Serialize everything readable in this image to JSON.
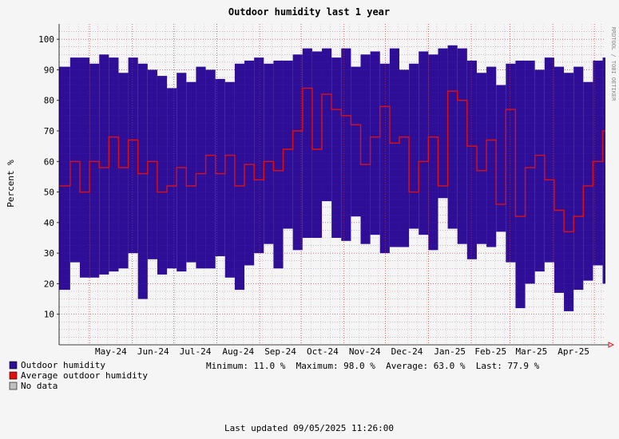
{
  "chart_data": {
    "type": "area",
    "title": "Outdoor humidity last 1 year",
    "ylabel": "Percent  %",
    "watermark": "RRDTOOL / TOBI OETIKER",
    "ylim": [
      0,
      105
    ],
    "yticks": [
      10,
      20,
      30,
      40,
      50,
      60,
      70,
      80,
      90,
      100
    ],
    "x_labels": [
      "May-24",
      "Jun-24",
      "Jul-24",
      "Aug-24",
      "Sep-24",
      "Oct-24",
      "Nov-24",
      "Dec-24",
      "Jan-25",
      "Feb-25",
      "Mar-25",
      "Apr-25"
    ],
    "colors": {
      "band": "#2e0e96",
      "average": "#e01010",
      "grid_minor": "#d4b4b4",
      "grid_major": "#c03030",
      "no_data": "#c0c0c0",
      "axis_arrow": "#e01010"
    },
    "series": [
      {
        "name": "Outdoor humidity",
        "kind": "band",
        "x": [
          "2024-04-09",
          "2024-04-17",
          "2024-04-24",
          "2024-05-01",
          "2024-05-08",
          "2024-05-15",
          "2024-05-22",
          "2024-05-29",
          "2024-06-05",
          "2024-06-12",
          "2024-06-19",
          "2024-06-26",
          "2024-07-03",
          "2024-07-10",
          "2024-07-17",
          "2024-07-24",
          "2024-07-31",
          "2024-08-07",
          "2024-08-14",
          "2024-08-21",
          "2024-08-28",
          "2024-09-04",
          "2024-09-11",
          "2024-09-18",
          "2024-09-25",
          "2024-10-02",
          "2024-10-09",
          "2024-10-16",
          "2024-10-23",
          "2024-10-30",
          "2024-11-06",
          "2024-11-13",
          "2024-11-20",
          "2024-11-27",
          "2024-12-04",
          "2024-12-11",
          "2024-12-18",
          "2024-12-25",
          "2025-01-01",
          "2025-01-08",
          "2025-01-15",
          "2025-01-22",
          "2025-01-29",
          "2025-02-05",
          "2025-02-12",
          "2025-02-19",
          "2025-02-26",
          "2025-03-05",
          "2025-03-12",
          "2025-03-19",
          "2025-03-26",
          "2025-04-02",
          "2025-04-09",
          "2025-04-16",
          "2025-04-23",
          "2025-04-30",
          "2025-05-07"
        ],
        "min": [
          18,
          27,
          22,
          22,
          23,
          24,
          25,
          30,
          15,
          28,
          23,
          25,
          24,
          27,
          25,
          25,
          29,
          22,
          18,
          26,
          30,
          33,
          25,
          38,
          31,
          35,
          35,
          47,
          35,
          34,
          42,
          33,
          36,
          30,
          32,
          32,
          38,
          36,
          31,
          48,
          38,
          33,
          28,
          33,
          32,
          37,
          27,
          12,
          20,
          24,
          27,
          17,
          11,
          18,
          21,
          26,
          20
        ],
        "max": [
          91,
          94,
          94,
          92,
          95,
          94,
          89,
          94,
          92,
          90,
          88,
          84,
          89,
          86,
          91,
          90,
          87,
          86,
          92,
          93,
          94,
          92,
          93,
          93,
          95,
          97,
          96,
          97,
          94,
          97,
          91,
          95,
          96,
          92,
          97,
          90,
          92,
          96,
          95,
          97,
          98,
          97,
          93,
          89,
          91,
          85,
          92,
          93,
          93,
          90,
          94,
          91,
          89,
          91,
          86,
          93,
          94
        ],
        "avg": [
          52,
          60,
          50,
          60,
          58,
          68,
          58,
          67,
          56,
          60,
          50,
          52,
          58,
          52,
          56,
          62,
          56,
          62,
          52,
          59,
          54,
          60,
          57,
          64,
          70,
          84,
          64,
          82,
          77,
          75,
          72,
          59,
          68,
          78,
          66,
          68,
          50,
          60,
          68,
          52,
          83,
          80,
          65,
          57,
          67,
          46,
          77,
          42,
          58,
          62,
          54,
          44,
          37,
          42,
          52,
          60,
          70
        ]
      },
      {
        "name": "Average outdoor humidity",
        "kind": "line"
      },
      {
        "name": "No data",
        "kind": "none"
      }
    ],
    "legend": [
      {
        "label": "Outdoor humidity",
        "color": "#2e0e96"
      },
      {
        "label": "Average outdoor humidity",
        "color": "#e01010"
      },
      {
        "label": "No data",
        "color": "#c0c0c0"
      }
    ],
    "stats_line": "Minimum: 11.0 %  Maximum: 98.0 %  Average: 63.0 %  Last: 77.9 %",
    "footer": "Last updated 09/05/2025 11:26:00"
  }
}
